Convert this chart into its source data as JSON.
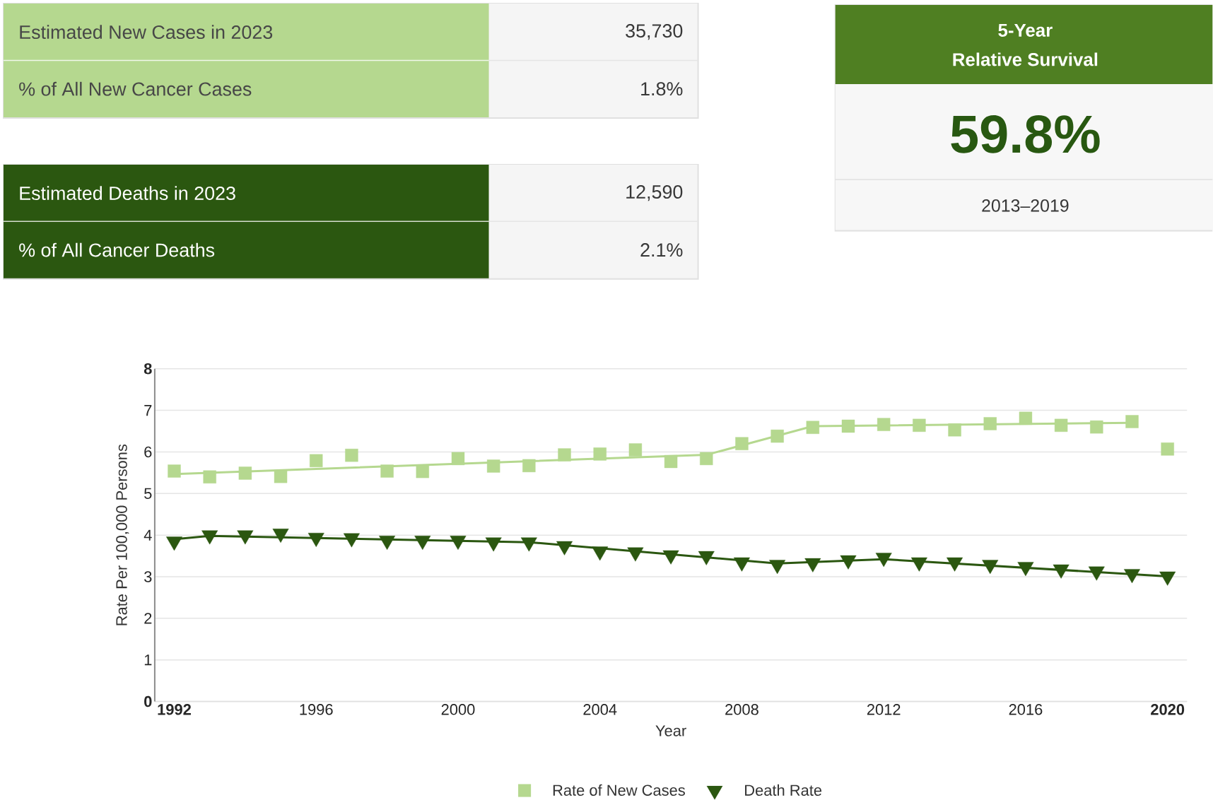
{
  "chart_data": [
    {
      "type": "other",
      "color": "#b5d88f",
      "annotations": [
        "Estimated New Cases in 2023",
        "35,730",
        "% of All New Cancer Cases",
        "1.8%"
      ]
    },
    {
      "type": "other",
      "color": "#2b5710",
      "annotations": [
        "Estimated Deaths in 2023",
        "12,590",
        "% of All Cancer Deaths",
        "2.1%"
      ]
    },
    {
      "type": "other",
      "color": "#4f7f22",
      "title": "5-Year",
      "subtitle": "Relative Survival",
      "annotations": [
        "59.8%",
        "2013–2019"
      ]
    },
    {
      "type": "line",
      "xlabel": "Year",
      "ylabel": "Rate Per 100,000 Persons",
      "grid": "y",
      "legend": "bottom",
      "xlim": [
        1991.45,
        2020.55
      ],
      "ylim": [
        0,
        8
      ],
      "xticks": [
        {
          "value": 1992,
          "label": "**1992**"
        },
        1996,
        2000,
        2004,
        2008,
        2012,
        2016,
        {
          "value": 2020,
          "label": "**2020**"
        }
      ],
      "yticks": [
        {
          "value": 0,
          "label": "**0**"
        },
        1,
        2,
        3,
        4,
        5,
        6,
        7,
        {
          "value": 8,
          "label": "**8**"
        }
      ],
      "x": [
        1992,
        1993,
        1994,
        1995,
        1996,
        1997,
        1998,
        1999,
        2000,
        2001,
        2002,
        2003,
        2004,
        2005,
        2006,
        2007,
        2008,
        2009,
        2010,
        2011,
        2012,
        2013,
        2014,
        2015,
        2016,
        2017,
        2018,
        2019,
        2020
      ],
      "series": [
        {
          "name": "Rate of New Cases",
          "type": "scatter",
          "marker": "square",
          "color": "#b5d88f",
          "values": [
            5.54,
            5.4,
            5.49,
            5.41,
            5.79,
            5.92,
            5.54,
            5.53,
            5.84,
            5.66,
            5.67,
            5.93,
            5.95,
            6.05,
            5.77,
            5.84,
            6.2,
            6.38,
            6.59,
            6.62,
            6.66,
            6.64,
            6.53,
            6.68,
            6.81,
            6.64,
            6.6,
            6.73,
            6.07
          ]
        },
        {
          "type": "line",
          "marker": "none",
          "color": "#b5d88f",
          "x": [
            1992,
            2007,
            2010,
            2019
          ],
          "values": [
            5.47,
            5.93,
            6.62,
            6.7
          ]
        },
        {
          "name": "Death Rate",
          "type": "scatter",
          "marker": "triangle",
          "color": "#2b5710",
          "values": [
            3.85,
            4.0,
            4.0,
            4.04,
            3.94,
            3.93,
            3.87,
            3.87,
            3.87,
            3.83,
            3.83,
            3.74,
            3.61,
            3.59,
            3.52,
            3.5,
            3.35,
            3.29,
            3.33,
            3.4,
            3.46,
            3.35,
            3.35,
            3.29,
            3.24,
            3.18,
            3.13,
            3.07,
            3.01
          ]
        },
        {
          "type": "line",
          "marker": "none",
          "color": "#2b5710",
          "x": [
            1992,
            1993,
            2002,
            2009,
            2012,
            2020
          ],
          "values": [
            3.9,
            3.98,
            3.83,
            3.32,
            3.42,
            3.01
          ]
        }
      ]
    }
  ]
}
